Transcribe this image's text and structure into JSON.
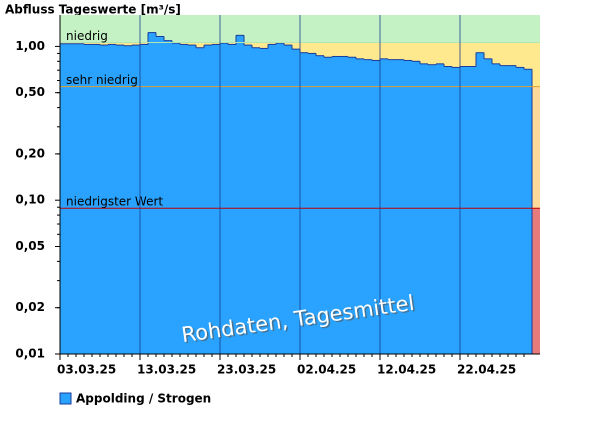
{
  "chart_data": {
    "type": "step-area",
    "title": "Abfluss Tageswerte [m³/s]",
    "annotation": "Rohdaten, Tagesmittel",
    "log_y": true,
    "ylim": [
      0.01,
      1.6
    ],
    "yticks": [
      {
        "value": 1,
        "label": "1,00"
      },
      {
        "value": 0.5,
        "label": "0,50"
      },
      {
        "value": 0.2,
        "label": "0,20"
      },
      {
        "value": 0.1,
        "label": "0,10"
      },
      {
        "value": 0.05,
        "label": "0,05"
      },
      {
        "value": 0.02,
        "label": "0,02"
      },
      {
        "value": 0.01,
        "label": "0,01"
      }
    ],
    "thresholds": [
      {
        "label": "niedrig",
        "value": 1.06,
        "line_color": "#b4e6b4",
        "color_above": "#c4f2c4"
      },
      {
        "label": "sehr niedrig",
        "value": 0.548,
        "line_color": "#e0a030",
        "color_above": "#ffe98f"
      },
      {
        "label": "niedrigster Wert",
        "value": 0.0887,
        "line_color": "#c00000",
        "color_above": "#ffd99a"
      }
    ],
    "color_below_lowest": "#e77b7b",
    "categories": [
      "03.03.25",
      null,
      null,
      null,
      null,
      null,
      null,
      null,
      null,
      null,
      "13.03.25",
      null,
      null,
      null,
      null,
      null,
      null,
      null,
      null,
      null,
      "23.03.25",
      null,
      null,
      null,
      null,
      null,
      null,
      null,
      null,
      null,
      "02.04.25",
      null,
      null,
      null,
      null,
      null,
      null,
      null,
      null,
      null,
      "12.04.25",
      null,
      null,
      null,
      null,
      null,
      null,
      null,
      null,
      null,
      "22.04.25",
      null,
      null,
      null,
      null,
      null,
      null,
      null,
      null
    ],
    "series": [
      {
        "name": "Appolding / Strogen",
        "color": "#29a3ff",
        "line_color": "#1a3c9c",
        "values": [
          1.04,
          1.04,
          1.04,
          1.03,
          1.03,
          1.02,
          1.03,
          1.02,
          1.01,
          1.02,
          1.03,
          1.23,
          1.16,
          1.09,
          1.05,
          1.03,
          1.02,
          0.98,
          1.02,
          1.03,
          1.05,
          1.03,
          1.18,
          1.02,
          0.98,
          0.97,
          1.03,
          1.05,
          1.02,
          0.96,
          0.91,
          0.9,
          0.87,
          0.85,
          0.86,
          0.86,
          0.85,
          0.83,
          0.82,
          0.81,
          0.83,
          0.82,
          0.82,
          0.81,
          0.8,
          0.77,
          0.76,
          0.77,
          0.74,
          0.73,
          0.74,
          0.74,
          0.91,
          0.83,
          0.77,
          0.75,
          0.75,
          0.73,
          0.71
        ]
      }
    ]
  }
}
